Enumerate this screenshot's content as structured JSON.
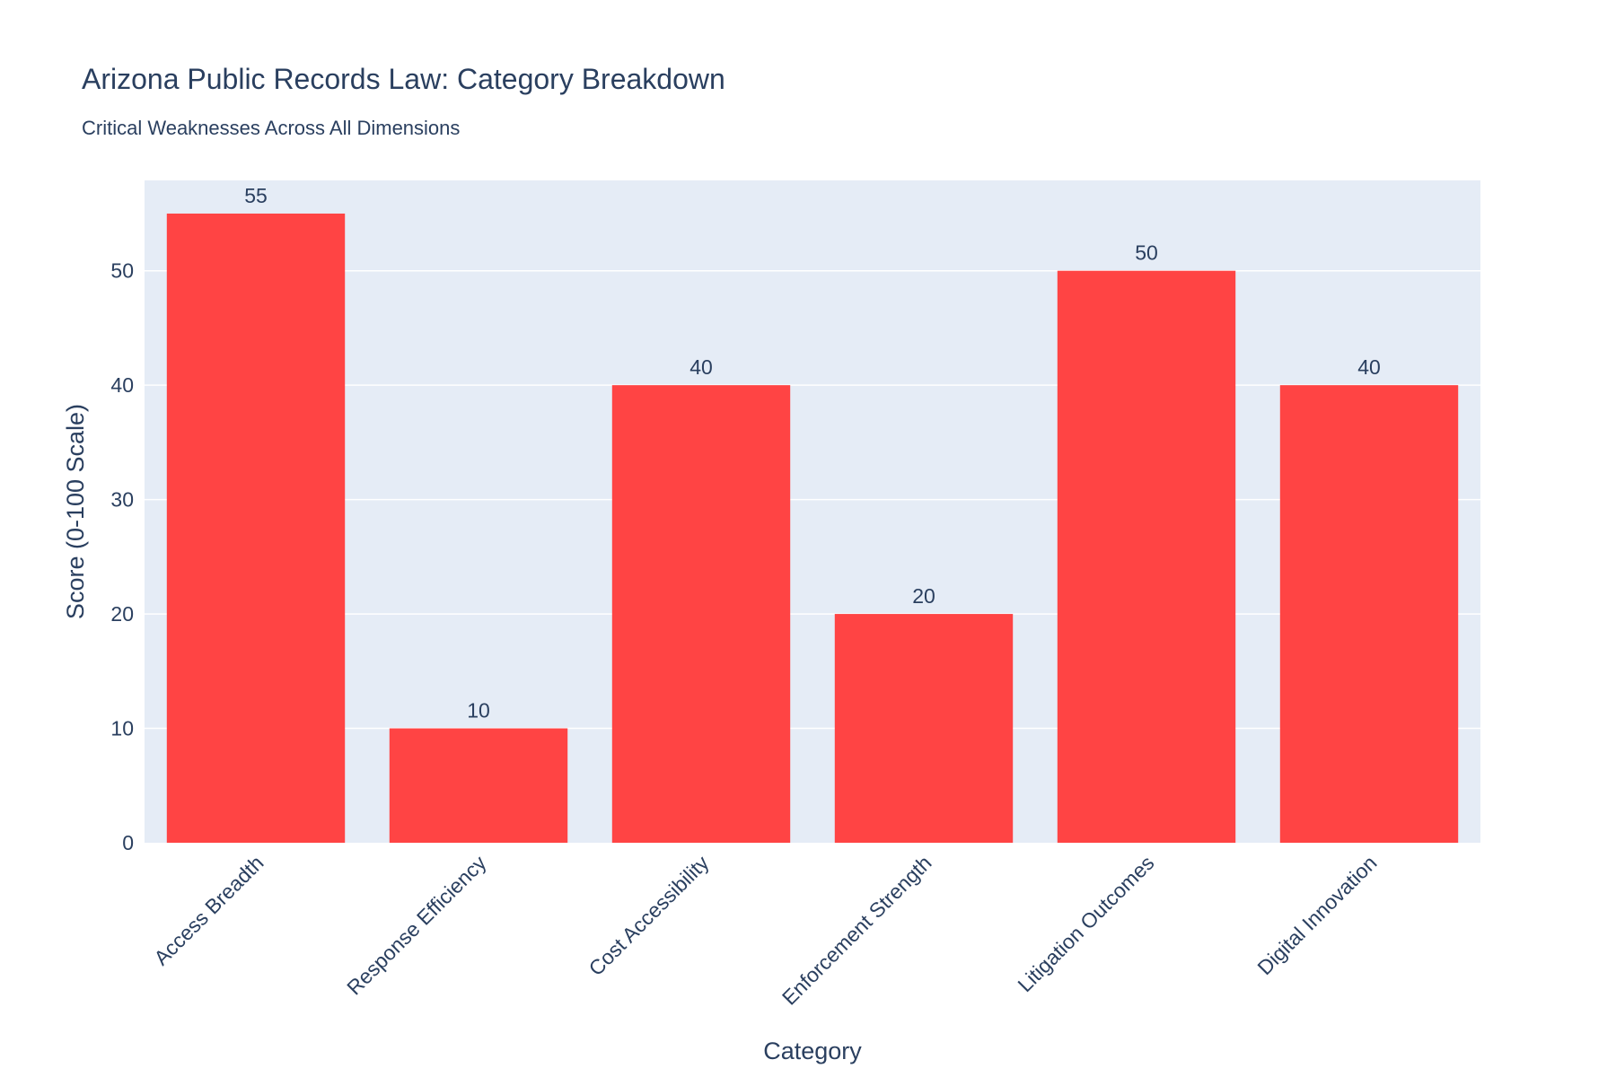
{
  "chart_data": {
    "type": "bar",
    "title": "Arizona Public Records Law: Category Breakdown",
    "subtitle": "Critical Weaknesses Across All Dimensions",
    "xlabel": "Category",
    "ylabel": "Score (0-100 Scale)",
    "categories": [
      "Access Breadth",
      "Response Efficiency",
      "Cost Accessibility",
      "Enforcement Strength",
      "Litigation Outcomes",
      "Digital Innovation"
    ],
    "values": [
      55,
      10,
      40,
      20,
      50,
      40
    ],
    "ylim": [
      0,
      57.9
    ],
    "yticks": [
      0,
      10,
      20,
      30,
      40,
      50
    ],
    "bar_color": "#ff4444",
    "plot_background": "#e5ecf6",
    "grid": true,
    "legend": "none"
  }
}
